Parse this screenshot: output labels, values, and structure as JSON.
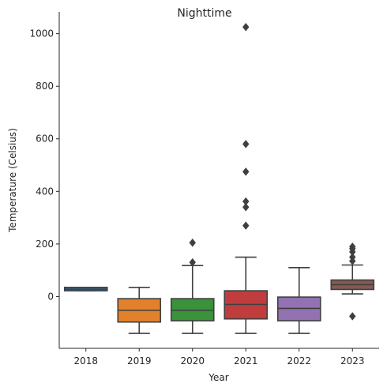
{
  "chart_data": {
    "type": "box",
    "title": "Nighttime",
    "xlabel": "Year",
    "ylabel": "Temperature (Celsius)",
    "ylim": [
      -197,
      1083
    ],
    "yticks": [
      0,
      200,
      400,
      600,
      800,
      1000
    ],
    "grid": false,
    "categories": [
      "2018",
      "2019",
      "2020",
      "2021",
      "2022",
      "2023"
    ],
    "boxes": [
      {
        "category": "2018",
        "whisker_low": 22,
        "q1": 22,
        "median": 28,
        "q3": 35,
        "whisker_high": 35,
        "outliers": [],
        "color": "#3274a1"
      },
      {
        "category": "2019",
        "whisker_low": -140,
        "q1": -97,
        "median": -52,
        "q3": -8,
        "whisker_high": 35,
        "outliers": [],
        "color": "#e1812c"
      },
      {
        "category": "2020",
        "whisker_low": -140,
        "q1": -92,
        "median": -52,
        "q3": -8,
        "whisker_high": 118,
        "outliers": [
          130,
          205
        ],
        "color": "#3a923a"
      },
      {
        "category": "2021",
        "whisker_low": -140,
        "q1": -85,
        "median": -30,
        "q3": 22,
        "whisker_high": 150,
        "outliers": [
          270,
          340,
          362,
          475,
          580,
          1025
        ],
        "color": "#c03d3e"
      },
      {
        "category": "2022",
        "whisker_low": -140,
        "q1": -92,
        "median": -45,
        "q3": -2,
        "whisker_high": 110,
        "outliers": [],
        "color": "#9372b2"
      },
      {
        "category": "2023",
        "whisker_low": 10,
        "q1": 27,
        "median": 45,
        "q3": 63,
        "whisker_high": 120,
        "outliers": [
          -75,
          135,
          150,
          170,
          182,
          190
        ],
        "color": "#845b53"
      }
    ]
  }
}
